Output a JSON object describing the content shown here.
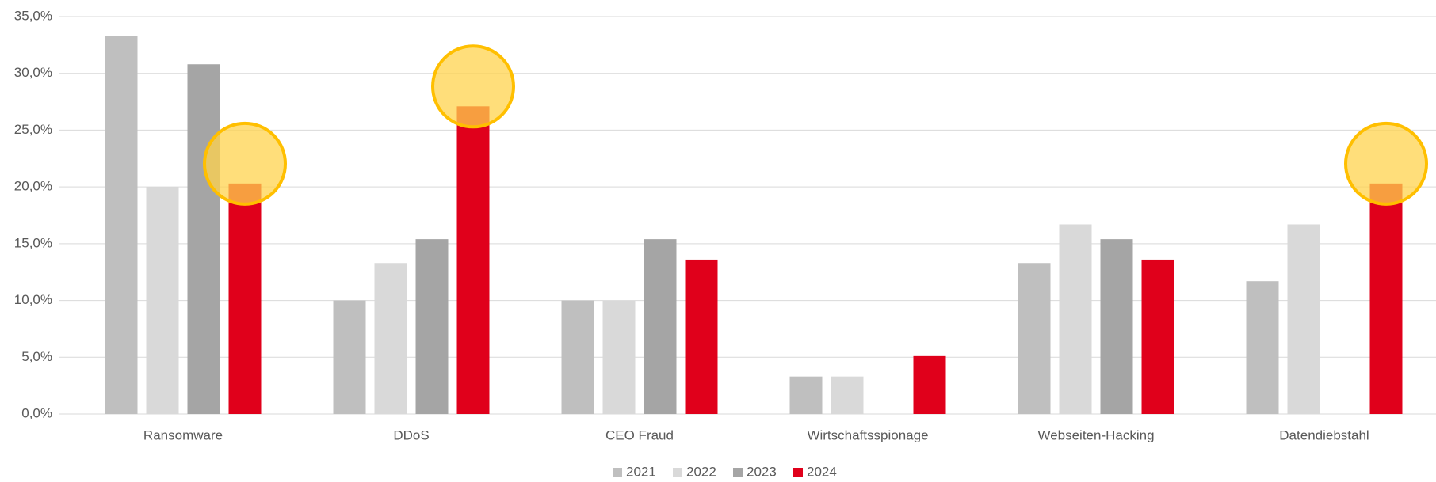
{
  "chart_data": {
    "type": "bar",
    "categories": [
      "Ransomware",
      "DDoS",
      "CEO Fraud",
      "Wirtschaftsspionage",
      "Webseiten-Hacking",
      "Datendiebstahl"
    ],
    "series": [
      {
        "name": "2021",
        "color": "#bfbfbf",
        "values": [
          33.3,
          10.0,
          10.0,
          3.3,
          13.3,
          11.7
        ]
      },
      {
        "name": "2022",
        "color": "#d9d9d9",
        "values": [
          20.0,
          13.3,
          10.0,
          3.3,
          16.7,
          16.7
        ]
      },
      {
        "name": "2023",
        "color": "#a5a5a5",
        "values": [
          30.8,
          15.4,
          15.4,
          null,
          15.4,
          null
        ]
      },
      {
        "name": "2024",
        "color": "#e0001b",
        "values": [
          20.3,
          27.1,
          13.6,
          5.1,
          13.6,
          20.3
        ]
      }
    ],
    "ylim": [
      0,
      35
    ],
    "yticks": [
      {
        "value": 0,
        "label": "0,0%"
      },
      {
        "value": 5,
        "label": "5,0%"
      },
      {
        "value": 10,
        "label": "10,0%"
      },
      {
        "value": 15,
        "label": "15,0%"
      },
      {
        "value": 20,
        "label": "20,0%"
      },
      {
        "value": 25,
        "label": "25,0%"
      },
      {
        "value": 30,
        "label": "30,0%"
      },
      {
        "value": 35,
        "label": "35,0%"
      }
    ],
    "grid": true,
    "legend": "bottom"
  }
}
